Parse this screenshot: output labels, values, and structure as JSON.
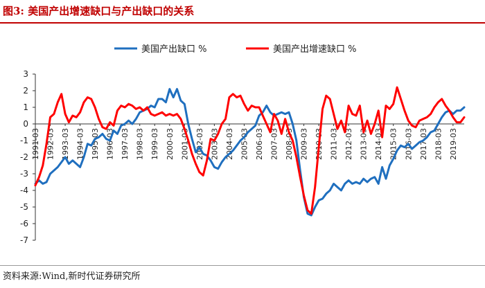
{
  "header": {
    "title": "图3:  美国产出增速缺口与产出缺口的关系"
  },
  "footer": {
    "source": "资料来源:Wind,新时代证券研究所"
  },
  "colors": {
    "series_blue": "#1f6fbf",
    "series_red": "#ff0000",
    "title_red": "#c00000"
  },
  "chart_data": {
    "type": "line",
    "title": "",
    "xlabel": "",
    "ylabel": "",
    "ylim": [
      -7,
      3
    ],
    "y_ticks": [
      "3",
      "2",
      "1",
      "0",
      "-1",
      "-2",
      "-3",
      "-4",
      "-5",
      "-6",
      "-7"
    ],
    "x_ticks": [
      "1991-03",
      "1992-03",
      "1993-03",
      "1994-03",
      "1995-03",
      "1996-03",
      "1997-03",
      "1998-03",
      "1999-03",
      "2000-03",
      "2001-03",
      "2002-03",
      "2003-03",
      "2004-03",
      "2005-03",
      "2006-03",
      "2007-03",
      "2008-03",
      "2009-03",
      "2010-03",
      "2011-03",
      "2012-03",
      "2013-03",
      "2014-03",
      "2015-03",
      "2016-03",
      "2017-03",
      "2018-03",
      "2019-03"
    ],
    "x_range": [
      1991.0,
      2019.75
    ],
    "legend_position": "top-center",
    "series": [
      {
        "name": "美国产出缺口 %",
        "color": "#1f6fbf",
        "points": [
          [
            1991.0,
            -3.6
          ],
          [
            1991.25,
            -3.4
          ],
          [
            1991.5,
            -3.6
          ],
          [
            1991.75,
            -3.5
          ],
          [
            1992.0,
            -3.0
          ],
          [
            1992.5,
            -2.6
          ],
          [
            1993.0,
            -2.0
          ],
          [
            1993.25,
            -2.4
          ],
          [
            1993.5,
            -2.2
          ],
          [
            1994.0,
            -2.6
          ],
          [
            1994.25,
            -2.0
          ],
          [
            1994.5,
            -1.2
          ],
          [
            1994.75,
            -1.3
          ],
          [
            1995.0,
            -0.9
          ],
          [
            1995.25,
            -0.8
          ],
          [
            1995.5,
            -0.6
          ],
          [
            1995.75,
            -0.9
          ],
          [
            1996.0,
            -1.0
          ],
          [
            1996.25,
            -0.4
          ],
          [
            1996.5,
            -0.6
          ],
          [
            1996.75,
            -0.1
          ],
          [
            1997.0,
            0.0
          ],
          [
            1997.25,
            0.2
          ],
          [
            1997.5,
            0.0
          ],
          [
            1997.75,
            0.3
          ],
          [
            1998.0,
            0.7
          ],
          [
            1998.25,
            0.8
          ],
          [
            1998.5,
            0.9
          ],
          [
            1998.75,
            1.1
          ],
          [
            1999.0,
            1.0
          ],
          [
            1999.25,
            1.5
          ],
          [
            1999.5,
            1.5
          ],
          [
            1999.75,
            1.3
          ],
          [
            2000.0,
            2.1
          ],
          [
            2000.25,
            1.6
          ],
          [
            2000.5,
            2.1
          ],
          [
            2000.75,
            1.4
          ],
          [
            2001.0,
            1.2
          ],
          [
            2001.25,
            0.0
          ],
          [
            2001.5,
            -0.9
          ],
          [
            2001.75,
            -1.7
          ],
          [
            2002.0,
            -1.4
          ],
          [
            2002.25,
            -1.8
          ],
          [
            2002.5,
            -1.9
          ],
          [
            2002.75,
            -2.2
          ],
          [
            2003.0,
            -2.6
          ],
          [
            2003.25,
            -2.7
          ],
          [
            2003.5,
            -2.3
          ],
          [
            2003.75,
            -2.0
          ],
          [
            2004.0,
            -1.8
          ],
          [
            2004.25,
            -1.6
          ],
          [
            2004.5,
            -1.3
          ],
          [
            2004.75,
            -1.0
          ],
          [
            2005.0,
            -0.8
          ],
          [
            2005.25,
            -0.5
          ],
          [
            2005.5,
            -0.3
          ],
          [
            2005.75,
            -0.1
          ],
          [
            2006.0,
            0.5
          ],
          [
            2006.25,
            0.7
          ],
          [
            2006.5,
            1.1
          ],
          [
            2006.75,
            0.7
          ],
          [
            2007.0,
            0.5
          ],
          [
            2007.25,
            0.6
          ],
          [
            2007.5,
            0.7
          ],
          [
            2007.75,
            0.6
          ],
          [
            2008.0,
            0.7
          ],
          [
            2008.25,
            0.0
          ],
          [
            2008.5,
            -1.0
          ],
          [
            2008.75,
            -2.8
          ],
          [
            2009.0,
            -4.4
          ],
          [
            2009.25,
            -5.4
          ],
          [
            2009.5,
            -5.5
          ],
          [
            2009.75,
            -5.0
          ],
          [
            2010.0,
            -4.6
          ],
          [
            2010.25,
            -4.5
          ],
          [
            2010.5,
            -4.2
          ],
          [
            2010.75,
            -4.0
          ],
          [
            2011.0,
            -3.6
          ],
          [
            2011.25,
            -3.8
          ],
          [
            2011.5,
            -4.0
          ],
          [
            2011.75,
            -3.6
          ],
          [
            2012.0,
            -3.4
          ],
          [
            2012.25,
            -3.6
          ],
          [
            2012.5,
            -3.5
          ],
          [
            2012.75,
            -3.6
          ],
          [
            2013.0,
            -3.3
          ],
          [
            2013.25,
            -3.5
          ],
          [
            2013.5,
            -3.3
          ],
          [
            2013.75,
            -3.2
          ],
          [
            2014.0,
            -3.6
          ],
          [
            2014.25,
            -2.6
          ],
          [
            2014.5,
            -3.3
          ],
          [
            2014.75,
            -2.5
          ],
          [
            2015.0,
            -2.1
          ],
          [
            2015.25,
            -1.6
          ],
          [
            2015.5,
            -1.3
          ],
          [
            2015.75,
            -1.4
          ],
          [
            2016.0,
            -1.2
          ],
          [
            2016.25,
            -1.5
          ],
          [
            2016.5,
            -1.3
          ],
          [
            2016.75,
            -1.1
          ],
          [
            2017.0,
            -1.0
          ],
          [
            2017.25,
            -0.8
          ],
          [
            2017.5,
            -0.5
          ],
          [
            2017.75,
            -0.4
          ],
          [
            2018.0,
            0.0
          ],
          [
            2018.25,
            0.4
          ],
          [
            2018.5,
            0.7
          ],
          [
            2018.75,
            0.8
          ],
          [
            2019.0,
            0.6
          ],
          [
            2019.25,
            0.8
          ],
          [
            2019.5,
            0.8
          ],
          [
            2019.75,
            1.0
          ]
        ]
      },
      {
        "name": "美国产出增速缺口 %",
        "color": "#ff0000",
        "points": [
          [
            1991.0,
            -3.7
          ],
          [
            1991.25,
            -3.2
          ],
          [
            1991.5,
            -2.5
          ],
          [
            1991.75,
            -1.2
          ],
          [
            1992.0,
            0.4
          ],
          [
            1992.25,
            0.6
          ],
          [
            1992.5,
            1.3
          ],
          [
            1992.75,
            1.8
          ],
          [
            1993.0,
            0.6
          ],
          [
            1993.25,
            0.1
          ],
          [
            1993.5,
            0.5
          ],
          [
            1993.75,
            0.4
          ],
          [
            1994.0,
            0.7
          ],
          [
            1994.25,
            1.3
          ],
          [
            1994.5,
            1.6
          ],
          [
            1994.75,
            1.5
          ],
          [
            1995.0,
            1.0
          ],
          [
            1995.25,
            0.3
          ],
          [
            1995.5,
            -0.2
          ],
          [
            1995.75,
            -0.3
          ],
          [
            1996.0,
            0.1
          ],
          [
            1996.25,
            -0.1
          ],
          [
            1996.5,
            0.8
          ],
          [
            1996.75,
            1.1
          ],
          [
            1997.0,
            1.0
          ],
          [
            1997.25,
            1.2
          ],
          [
            1997.5,
            1.1
          ],
          [
            1997.75,
            0.9
          ],
          [
            1998.0,
            1.0
          ],
          [
            1998.25,
            0.8
          ],
          [
            1998.5,
            1.0
          ],
          [
            1998.75,
            0.6
          ],
          [
            1999.0,
            0.5
          ],
          [
            1999.25,
            0.6
          ],
          [
            1999.5,
            0.7
          ],
          [
            1999.75,
            0.5
          ],
          [
            2000.0,
            0.6
          ],
          [
            2000.25,
            0.5
          ],
          [
            2000.5,
            0.6
          ],
          [
            2000.75,
            0.3
          ],
          [
            2001.0,
            -0.3
          ],
          [
            2001.25,
            -1.0
          ],
          [
            2001.5,
            -1.8
          ],
          [
            2001.75,
            -2.4
          ],
          [
            2002.0,
            -2.9
          ],
          [
            2002.25,
            -3.1
          ],
          [
            2002.5,
            -2.2
          ],
          [
            2002.75,
            -0.9
          ],
          [
            2003.0,
            -1.0
          ],
          [
            2003.25,
            -0.6
          ],
          [
            2003.5,
            0.0
          ],
          [
            2003.75,
            0.3
          ],
          [
            2004.0,
            1.6
          ],
          [
            2004.25,
            1.8
          ],
          [
            2004.5,
            1.6
          ],
          [
            2004.75,
            1.7
          ],
          [
            2005.0,
            1.2
          ],
          [
            2005.25,
            0.8
          ],
          [
            2005.5,
            1.1
          ],
          [
            2005.75,
            1.0
          ],
          [
            2006.0,
            1.0
          ],
          [
            2006.25,
            0.5
          ],
          [
            2006.5,
            0.0
          ],
          [
            2006.75,
            -0.5
          ],
          [
            2007.0,
            0.6
          ],
          [
            2007.25,
            0.2
          ],
          [
            2007.5,
            -0.6
          ],
          [
            2007.75,
            0.3
          ],
          [
            2008.0,
            -0.5
          ],
          [
            2008.25,
            -1.0
          ],
          [
            2008.5,
            -2.0
          ],
          [
            2008.75,
            -3.2
          ],
          [
            2009.0,
            -4.3
          ],
          [
            2009.25,
            -5.2
          ],
          [
            2009.5,
            -5.4
          ],
          [
            2009.75,
            -3.8
          ],
          [
            2010.0,
            -1.4
          ],
          [
            2010.25,
            0.9
          ],
          [
            2010.5,
            1.7
          ],
          [
            2010.75,
            1.5
          ],
          [
            2011.0,
            0.6
          ],
          [
            2011.25,
            -0.3
          ],
          [
            2011.5,
            0.2
          ],
          [
            2011.75,
            -0.5
          ],
          [
            2012.0,
            1.1
          ],
          [
            2012.25,
            0.6
          ],
          [
            2012.5,
            0.5
          ],
          [
            2012.75,
            1.1
          ],
          [
            2013.0,
            -0.5
          ],
          [
            2013.25,
            0.2
          ],
          [
            2013.5,
            -0.6
          ],
          [
            2013.75,
            0.0
          ],
          [
            2014.0,
            0.8
          ],
          [
            2014.25,
            -0.8
          ],
          [
            2014.5,
            1.1
          ],
          [
            2014.75,
            0.9
          ],
          [
            2015.0,
            1.2
          ],
          [
            2015.25,
            2.2
          ],
          [
            2015.5,
            1.5
          ],
          [
            2015.75,
            0.8
          ],
          [
            2016.0,
            0.2
          ],
          [
            2016.25,
            -0.1
          ],
          [
            2016.5,
            -0.2
          ],
          [
            2016.75,
            0.2
          ],
          [
            2017.0,
            0.3
          ],
          [
            2017.25,
            0.4
          ],
          [
            2017.5,
            0.6
          ],
          [
            2017.75,
            1.0
          ],
          [
            2018.0,
            1.3
          ],
          [
            2018.25,
            1.5
          ],
          [
            2018.5,
            1.1
          ],
          [
            2018.75,
            0.8
          ],
          [
            2019.0,
            0.4
          ],
          [
            2019.25,
            0.1
          ],
          [
            2019.5,
            0.1
          ],
          [
            2019.75,
            0.4
          ]
        ]
      }
    ]
  }
}
